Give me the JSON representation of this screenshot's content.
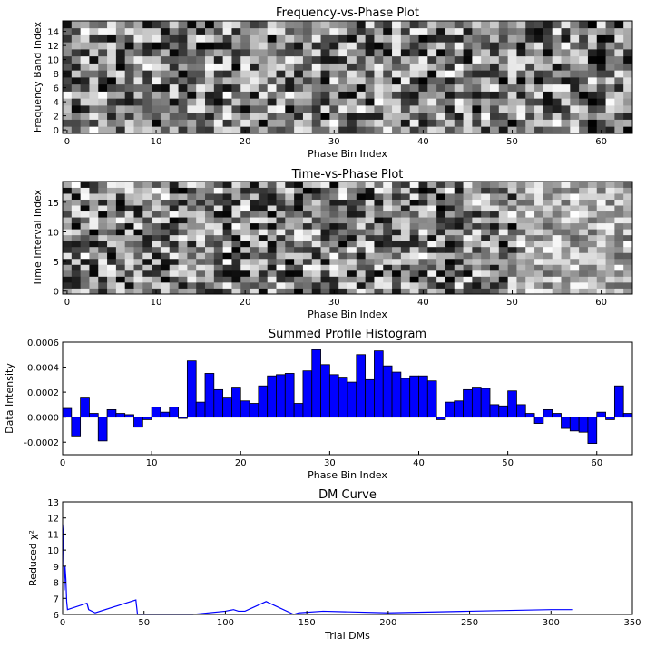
{
  "chart_data": [
    {
      "type": "heatmap",
      "title": "Frequency-vs-Phase Plot",
      "xlabel": "Phase Bin Index",
      "ylabel": "Frequency Band Index",
      "colormap": "gray",
      "xlim": [
        -0.5,
        63.5
      ],
      "ylim": [
        -0.5,
        15.5
      ],
      "xticks": [
        "0",
        "10",
        "20",
        "30",
        "40",
        "50",
        "60"
      ],
      "yticks": [
        "0",
        "2",
        "4",
        "6",
        "8",
        "10",
        "12",
        "14"
      ],
      "n_cols": 64,
      "n_rows": 16,
      "values_note": "random-looking noise pattern; each cell a grayscale intensity"
    },
    {
      "type": "heatmap",
      "title": "Time-vs-Phase Plot",
      "xlabel": "Phase Bin Index",
      "ylabel": "Time Interval Index",
      "colormap": "gray",
      "xlim": [
        -0.5,
        63.5
      ],
      "ylim": [
        -0.5,
        18.5
      ],
      "xticks": [
        "0",
        "10",
        "20",
        "30",
        "40",
        "50",
        "60"
      ],
      "yticks": [
        "0",
        "5",
        "10",
        "15"
      ],
      "n_cols": 64,
      "n_rows": 19
    },
    {
      "type": "bar",
      "title": "Summed Profile Histogram",
      "xlabel": "Phase Bin Index",
      "ylabel": "Data Intensity",
      "bar_color": "#0000ff",
      "xlim": [
        0,
        64
      ],
      "ylim": [
        -0.0003,
        0.0006
      ],
      "xticks": [
        "0",
        "10",
        "20",
        "30",
        "40",
        "50",
        "60"
      ],
      "yticks": [
        "-0.0002",
        "0.0000",
        "0.0002",
        "0.0004",
        "0.0006"
      ],
      "values": [
        7e-05,
        -0.00015,
        0.00016,
        3e-05,
        -0.00019,
        6e-05,
        3e-05,
        2e-05,
        -8e-05,
        -2e-05,
        8e-05,
        4e-05,
        8e-05,
        -1e-05,
        0.00045,
        0.00012,
        0.00035,
        0.00022,
        0.00016,
        0.00024,
        0.00013,
        0.00011,
        0.00025,
        0.00033,
        0.00034,
        0.00035,
        0.00011,
        0.00037,
        0.00054,
        0.00042,
        0.00034,
        0.00032,
        0.00028,
        0.0005,
        0.0003,
        0.00053,
        0.00041,
        0.00036,
        0.00031,
        0.00033,
        0.00033,
        0.00029,
        -2e-05,
        0.00012,
        0.00013,
        0.00022,
        0.00024,
        0.00023,
        0.0001,
        9e-05,
        0.00021,
        0.0001,
        3e-05,
        -5e-05,
        6e-05,
        3e-05,
        -9e-05,
        -0.00011,
        -0.00012,
        -0.00021,
        4e-05,
        -2e-05,
        0.00025,
        3e-05
      ]
    },
    {
      "type": "line",
      "title": "DM Curve",
      "xlabel": "Trial DMs",
      "ylabel": "Reduced χ²",
      "line_color": "#0000ff",
      "xlim": [
        0,
        350
      ],
      "ylim": [
        6,
        13
      ],
      "xticks": [
        "0",
        "50",
        "100",
        "150",
        "200",
        "250",
        "300",
        "350"
      ],
      "yticks": [
        "6",
        "7",
        "8",
        "9",
        "10",
        "11",
        "12",
        "13"
      ],
      "x": [
        0,
        0.5,
        1,
        1.5,
        2,
        2.5,
        3,
        15,
        16,
        20,
        45,
        46,
        50,
        60,
        80,
        100,
        105,
        108,
        112,
        125,
        142,
        145,
        160,
        200,
        250,
        300,
        313
      ],
      "y": [
        11.6,
        10.9,
        7.5,
        9.0,
        8.2,
        6.8,
        6.3,
        6.7,
        6.3,
        6.1,
        6.9,
        6.0,
        6.0,
        6.0,
        6.0,
        6.2,
        6.3,
        6.2,
        6.2,
        6.8,
        6.0,
        6.1,
        6.2,
        6.1,
        6.2,
        6.3,
        6.3
      ]
    }
  ]
}
